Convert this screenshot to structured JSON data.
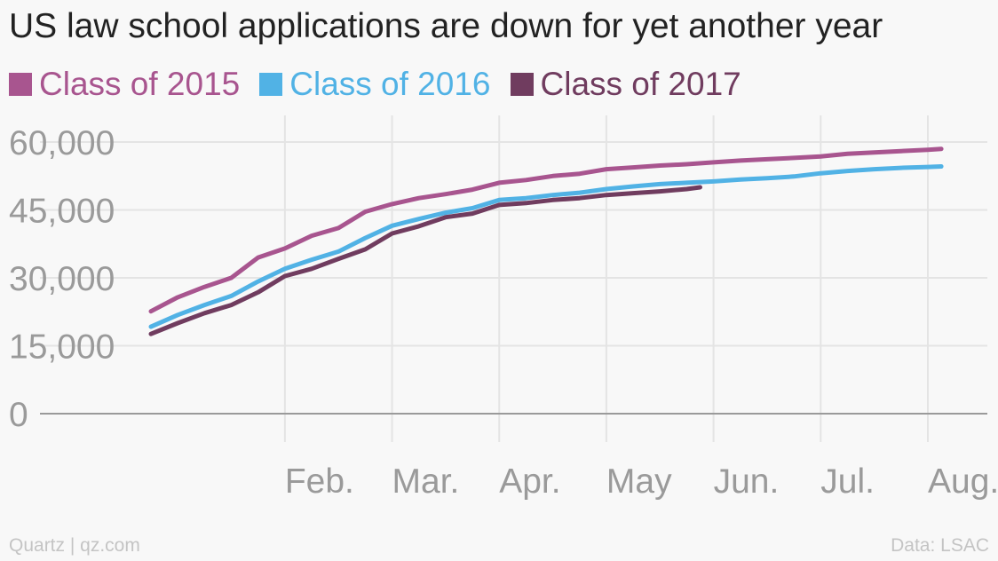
{
  "title": "US law school applications are down for yet another year",
  "footer": {
    "source_left": "Quartz | qz.com",
    "source_right": "Data: LSAC"
  },
  "chart_data": {
    "type": "line",
    "title": "US law school applications are down for yet another year",
    "ylim": [
      0,
      60000
    ],
    "y_ticks": [
      0,
      15000,
      30000,
      45000,
      60000
    ],
    "y_tick_labels": [
      "0",
      "15,000",
      "30,000",
      "45,000",
      "60,000"
    ],
    "x_domain": [
      0,
      30
    ],
    "x_ticks": [
      6,
      10,
      14,
      18,
      22,
      26,
      30
    ],
    "x_tick_labels": [
      "Feb.",
      "Mar.",
      "Apr.",
      "May",
      "Jun.",
      "Jul.",
      "Aug."
    ],
    "grid": true,
    "legend_position": "top-left",
    "series": [
      {
        "name": "Class of 2015",
        "color": "#a8558f",
        "x": [
          1.0,
          2.0,
          3.0,
          4.0,
          5.0,
          6.0,
          7.0,
          8.0,
          9.0,
          10.0,
          11.0,
          12.0,
          13.0,
          14.0,
          15.0,
          16.0,
          17.0,
          18.0,
          19.0,
          20.0,
          21.0,
          22.0,
          23.0,
          24.0,
          25.0,
          26.0,
          27.0,
          28.0,
          29.0,
          30.0,
          30.5
        ],
        "values": [
          22600,
          25700,
          28000,
          30000,
          34500,
          36500,
          39300,
          41000,
          44600,
          46300,
          47600,
          48500,
          49500,
          51000,
          51600,
          52500,
          53000,
          54000,
          54400,
          54800,
          55100,
          55500,
          55900,
          56200,
          56500,
          56800,
          57400,
          57700,
          58000,
          58300,
          58500
        ]
      },
      {
        "name": "Class of 2016",
        "color": "#51b2e5",
        "x": [
          1.0,
          2.0,
          3.0,
          4.0,
          5.0,
          6.0,
          7.0,
          8.0,
          9.0,
          10.0,
          11.0,
          12.0,
          13.0,
          14.0,
          15.0,
          16.0,
          17.0,
          18.0,
          19.0,
          20.0,
          21.0,
          22.0,
          23.0,
          24.0,
          25.0,
          26.0,
          27.0,
          28.0,
          29.0,
          30.0,
          30.5
        ],
        "values": [
          19200,
          21800,
          24000,
          26000,
          29200,
          32000,
          34000,
          35800,
          38800,
          41500,
          43000,
          44400,
          45400,
          47200,
          47600,
          48300,
          48800,
          49600,
          50200,
          50700,
          51000,
          51300,
          51700,
          52000,
          52400,
          53100,
          53600,
          54000,
          54300,
          54500,
          54600
        ]
      },
      {
        "name": "Class of 2017",
        "color": "#703c5f",
        "x": [
          1.0,
          2.0,
          3.0,
          4.0,
          5.0,
          6.0,
          7.0,
          8.0,
          9.0,
          10.0,
          11.0,
          12.0,
          13.0,
          14.0,
          15.0,
          16.0,
          17.0,
          18.0,
          19.0,
          20.0,
          21.0,
          21.5
        ],
        "values": [
          17600,
          20000,
          22200,
          24000,
          26800,
          30400,
          32000,
          34200,
          36300,
          39800,
          41400,
          43400,
          44200,
          46100,
          46500,
          47200,
          47600,
          48300,
          48700,
          49100,
          49600,
          50000
        ]
      }
    ]
  }
}
